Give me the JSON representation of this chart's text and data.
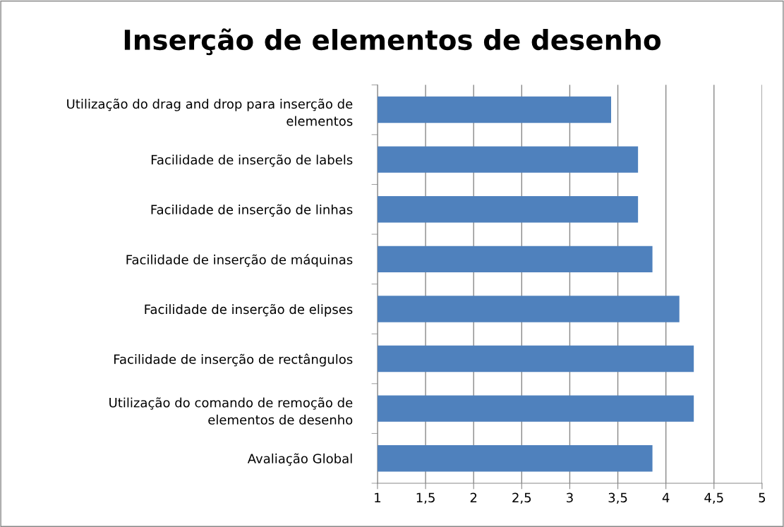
{
  "chart_data": {
    "type": "bar",
    "orientation": "horizontal",
    "title": "Inserção de elementos de desenho",
    "categories": [
      "Utilização do drag and drop para inserção de elementos",
      "Facilidade de inserção de labels",
      "Facilidade de inserção de linhas",
      "Facilidade de inserção de máquinas",
      "Facilidade de inserção de elipses",
      "Facilidade de inserção de rectângulos",
      "Utilização do comando de remoção de elementos de desenho",
      "Avaliação Global"
    ],
    "values": [
      3.43,
      3.71,
      3.71,
      3.86,
      4.14,
      4.29,
      4.29,
      3.86
    ],
    "color": "#4f81bd",
    "xlim": [
      1,
      5
    ],
    "xticks": [
      1,
      {
        "value": 1.5,
        "label": "1,5"
      },
      2,
      {
        "value": 2.5,
        "label": "2,5"
      },
      3,
      {
        "value": 3.5,
        "label": "3,5"
      },
      4,
      {
        "value": 4.5,
        "label": "4,5"
      },
      5
    ],
    "grid": "x",
    "legend": false
  }
}
